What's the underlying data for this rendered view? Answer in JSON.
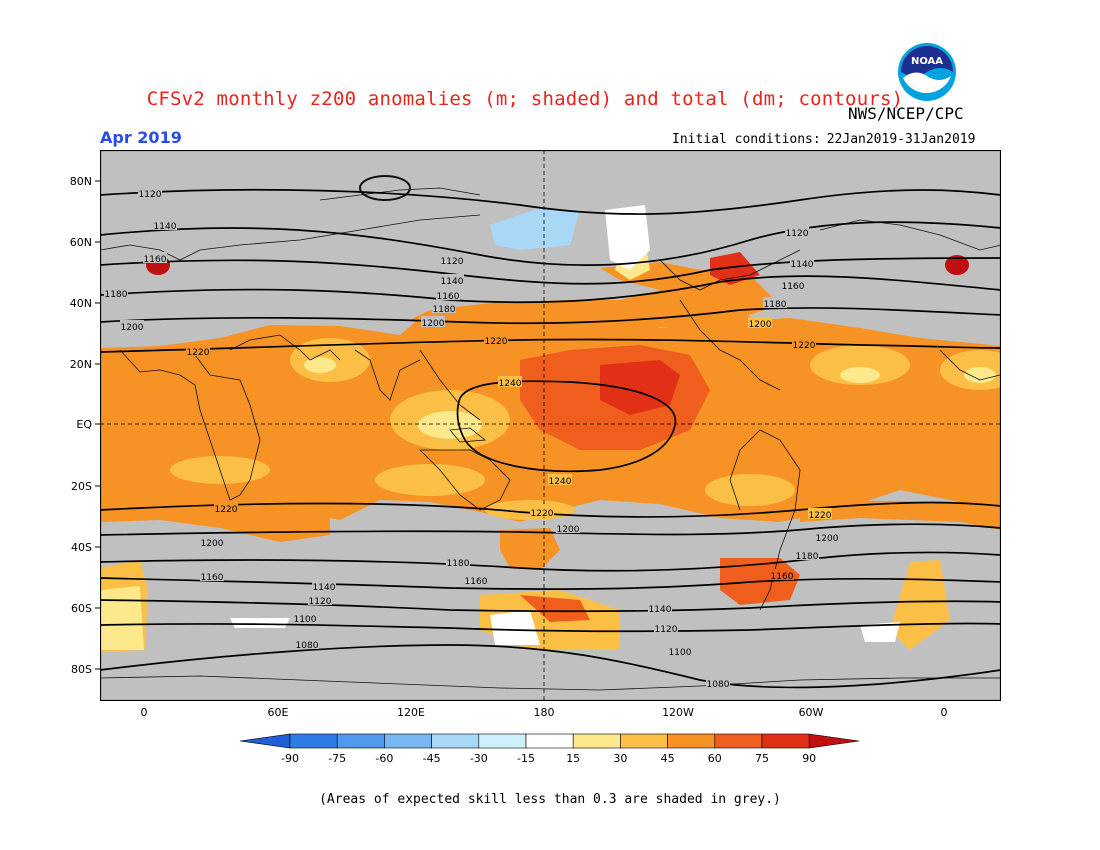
{
  "title": "CFSv2 monthly z200 anomalies (m; shaded) and total (dm; contours)",
  "agency": "NWS/NCEP/CPC",
  "logo_text": "NOAA",
  "month": "Apr 2019",
  "initial_conditions": {
    "label": "Initial conditions:",
    "value": "22Jan2019-31Jan2019"
  },
  "lat_labels": [
    "80N",
    "60N",
    "40N",
    "20N",
    "EQ",
    "20S",
    "40S",
    "60S",
    "80S"
  ],
  "lon_labels": [
    "0",
    "60E",
    "120E",
    "180",
    "120W",
    "60W",
    "0"
  ],
  "contour_labels": [
    "1080",
    "1100",
    "1120",
    "1140",
    "1160",
    "1180",
    "1200",
    "1220",
    "1240"
  ],
  "colorbar": {
    "ticks": [
      "-90",
      "-75",
      "-60",
      "-45",
      "-30",
      "-15",
      "15",
      "30",
      "45",
      "60",
      "75",
      "90"
    ],
    "colors": [
      "#1f5fd8",
      "#2f7ce6",
      "#4f98ee",
      "#78b6f2",
      "#a8d8f6",
      "#cdeffa",
      "#ffffff",
      "#fde88c",
      "#fbbf46",
      "#f79224",
      "#ef5e1c",
      "#e23016",
      "#c01010"
    ]
  },
  "footnote": "(Areas of expected skill less than 0.3 are shaded in grey.)"
}
